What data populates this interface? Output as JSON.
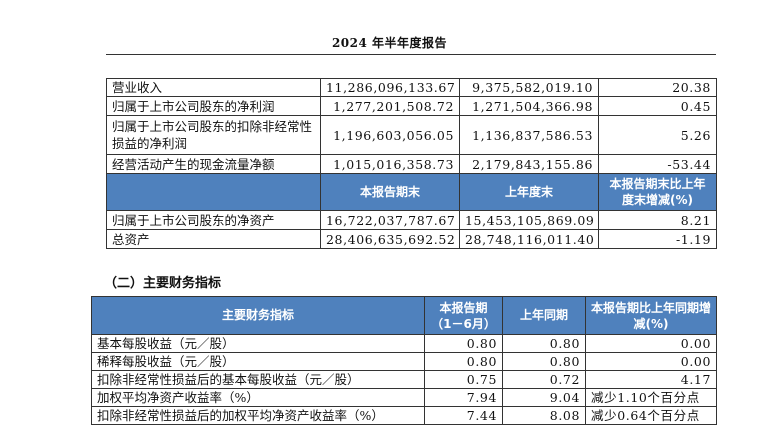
{
  "header": {
    "title": "2024 年半年度报告"
  },
  "table1": {
    "rows_top": [
      {
        "label": "营业收入",
        "v1": "11,286,096,133.67",
        "v2": "9,375,582,019.10",
        "v3": "20.38"
      },
      {
        "label": "归属于上市公司股东的净利润",
        "v1": "1,277,201,508.72",
        "v2": "1,271,504,366.98",
        "v3": "0.45"
      },
      {
        "label": "归属于上市公司股东的扣除非经常性损益的净利润",
        "v1": "1,196,603,056.05",
        "v2": "1,136,837,586.53",
        "v3": "5.26"
      },
      {
        "label": "经营活动产生的现金流量净额",
        "v1": "1,015,016,358.73",
        "v2": "2,179,843,155.86",
        "v3": "-53.44"
      }
    ],
    "mid_header": {
      "c1": "本报告期末",
      "c2": "上年度末",
      "c3": "本报告期末比上年度末增减(%)"
    },
    "rows_bottom": [
      {
        "label": "归属于上市公司股东的净资产",
        "v1": "16,722,037,787.67",
        "v2": "15,453,105,869.09",
        "v3": "8.21"
      },
      {
        "label": "总资产",
        "v1": "28,406,635,692.52",
        "v2": "28,748,116,011.40",
        "v3": "-1.19"
      }
    ]
  },
  "section2": {
    "title": "（二）主要财务指标"
  },
  "table2": {
    "header": {
      "c0": "主要财务指标",
      "c1": "本报告期（1－6月）",
      "c2": "上年同期",
      "c3": "本报告期比上年同期增减(%)"
    },
    "rows": [
      {
        "label": "基本每股收益（元／股）",
        "v1": "0.80",
        "v2": "0.80",
        "v3": "0.00"
      },
      {
        "label": "稀释每股收益（元／股）",
        "v1": "0.80",
        "v2": "0.80",
        "v3": "0.00"
      },
      {
        "label": "扣除非经常性损益后的基本每股收益（元／股）",
        "v1": "0.75",
        "v2": "0.72",
        "v3": "4.17"
      },
      {
        "label": "加权平均净资产收益率（%）",
        "v1": "7.94",
        "v2": "9.04",
        "v3": "减少1.10个百分点"
      },
      {
        "label": "扣除非经常性损益后的加权平均净资产收益率（%）",
        "v1": "7.44",
        "v2": "8.08",
        "v3": "减少0.64个百分点"
      }
    ]
  }
}
